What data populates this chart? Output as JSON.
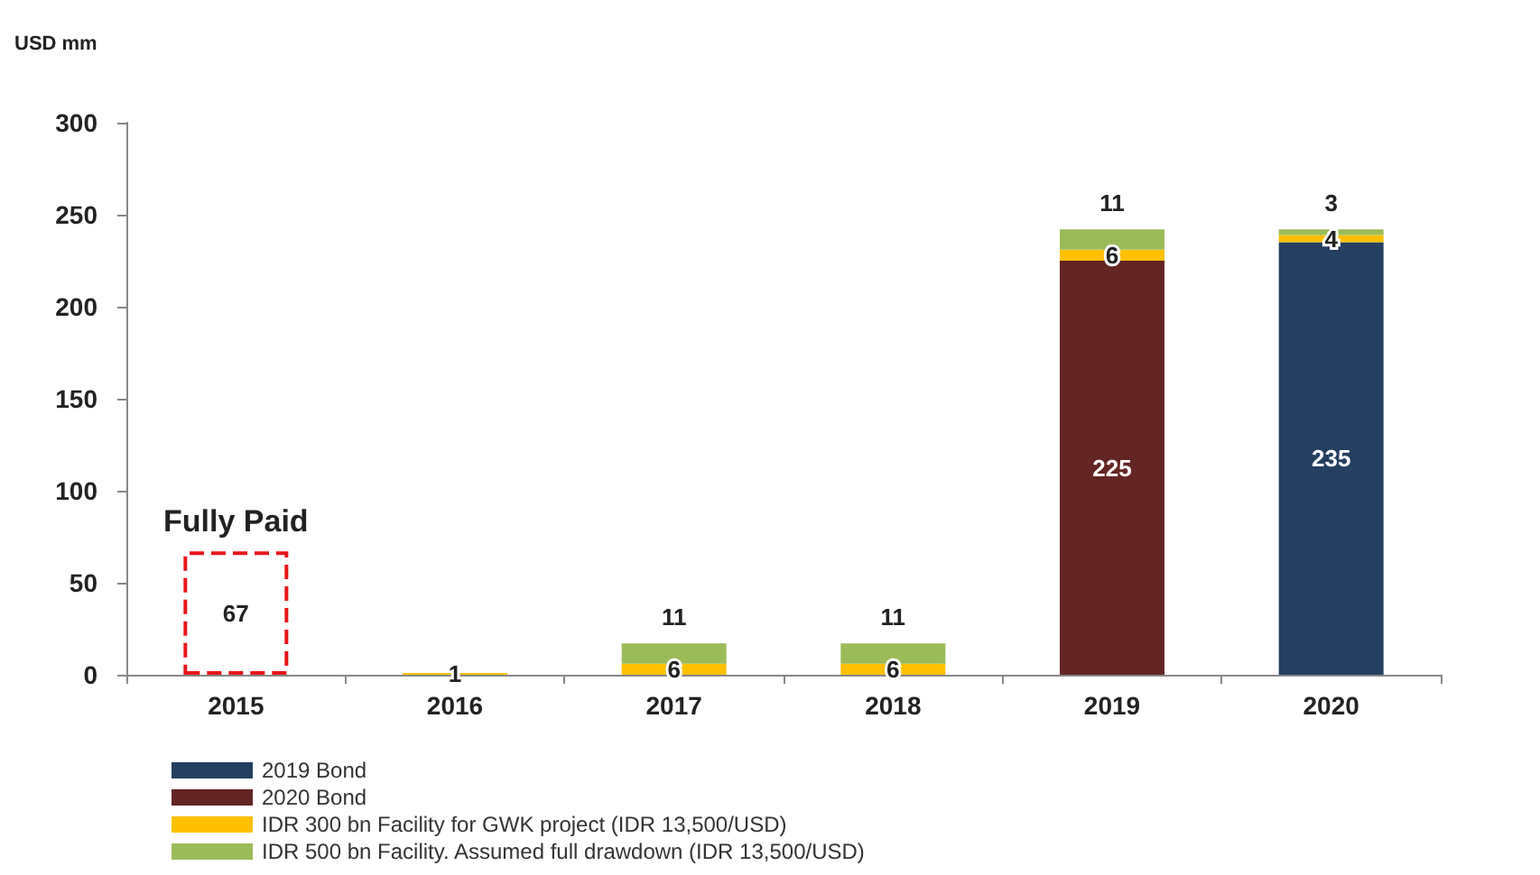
{
  "chart_data": {
    "type": "bar",
    "ylabel": "USD mm",
    "categories": [
      "2015",
      "2016",
      "2017",
      "2018",
      "2019",
      "2020"
    ],
    "stacked": true,
    "data_labels": true,
    "legend": "bottom",
    "grid": false,
    "ylim": [
      0,
      300
    ],
    "yticks": [
      0,
      50,
      100,
      150,
      200,
      250,
      300
    ],
    "series": [
      {
        "color": "#e8161b",
        "line_style": "dashed",
        "values": [
          67,
          null,
          null,
          null,
          null,
          null
        ]
      },
      {
        "name": "2019 Bond",
        "color": "#243f60",
        "values": [
          null,
          null,
          null,
          null,
          null,
          235
        ]
      },
      {
        "name": "2020 Bond",
        "color": "#632523",
        "values": [
          null,
          null,
          null,
          null,
          225,
          null
        ]
      },
      {
        "name": "IDR 300 bn Facility for GWK project (IDR 13,500/USD)",
        "color": "#ffc000",
        "values": [
          null,
          1,
          6,
          6,
          6,
          4
        ]
      },
      {
        "name": "IDR 500 bn Facility. Assumed full drawdown (IDR 13,500/USD)",
        "color": "#9bbb59",
        "values": [
          null,
          null,
          11,
          11,
          11,
          3
        ]
      }
    ],
    "annotations": [
      {
        "text": "Fully Paid",
        "x": "2015",
        "y": 67
      }
    ]
  }
}
